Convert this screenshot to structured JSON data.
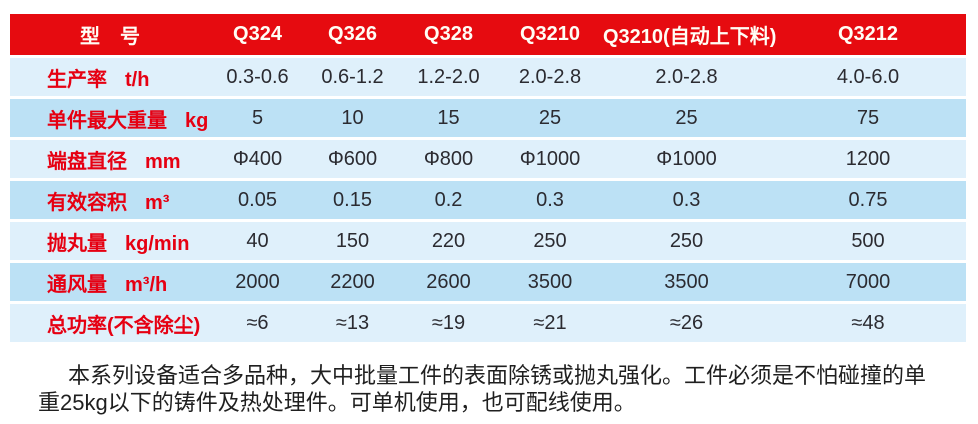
{
  "colors": {
    "header_bg": "#e60b10",
    "header_text": "#fffdf5",
    "label_text": "#e60012",
    "row_light": "#dff0fb",
    "row_dark": "#bce1f5",
    "value_text": "#2b2b31",
    "paragraph_text": "#1f1f1f"
  },
  "spec_table": {
    "header": {
      "label": "型　号",
      "models": [
        "Q324",
        "Q326",
        "Q328",
        "Q3210",
        "Q3210(自动上下料)",
        "Q3212"
      ]
    },
    "rows": [
      {
        "label": "生产率",
        "unit": "t/h",
        "values": [
          "0.3-0.6",
          "0.6-1.2",
          "1.2-2.0",
          "2.0-2.8",
          "2.0-2.8",
          "4.0-6.0"
        ]
      },
      {
        "label": "单件最大重量",
        "unit": "kg",
        "values": [
          "5",
          "10",
          "15",
          "25",
          "25",
          "75"
        ]
      },
      {
        "label": "端盘直径",
        "unit": "mm",
        "values": [
          "Φ400",
          "Φ600",
          "Φ800",
          "Φ1000",
          "Φ1000",
          "1200"
        ]
      },
      {
        "label": "有效容积",
        "unit": "m³",
        "values": [
          "0.05",
          "0.15",
          "0.2",
          "0.3",
          "0.3",
          "0.75"
        ]
      },
      {
        "label": "抛丸量",
        "unit": "kg/min",
        "values": [
          "40",
          "150",
          "220",
          "250",
          "250",
          "500"
        ]
      },
      {
        "label": "通风量",
        "unit": "m³/h",
        "values": [
          "2000",
          "2200",
          "2600",
          "3500",
          "3500",
          "7000"
        ]
      },
      {
        "label": "总功率(不含除尘)",
        "unit": "",
        "values": [
          "≈6",
          "≈13",
          "≈19",
          "≈21",
          "≈26",
          "≈48"
        ]
      }
    ]
  },
  "description": "本系列设备适合多品种，大中批量工件的表面除锈或抛丸强化。工件必须是不怕碰撞的单重25kg以下的铸件及热处理件。可单机使用，也可配线使用。"
}
